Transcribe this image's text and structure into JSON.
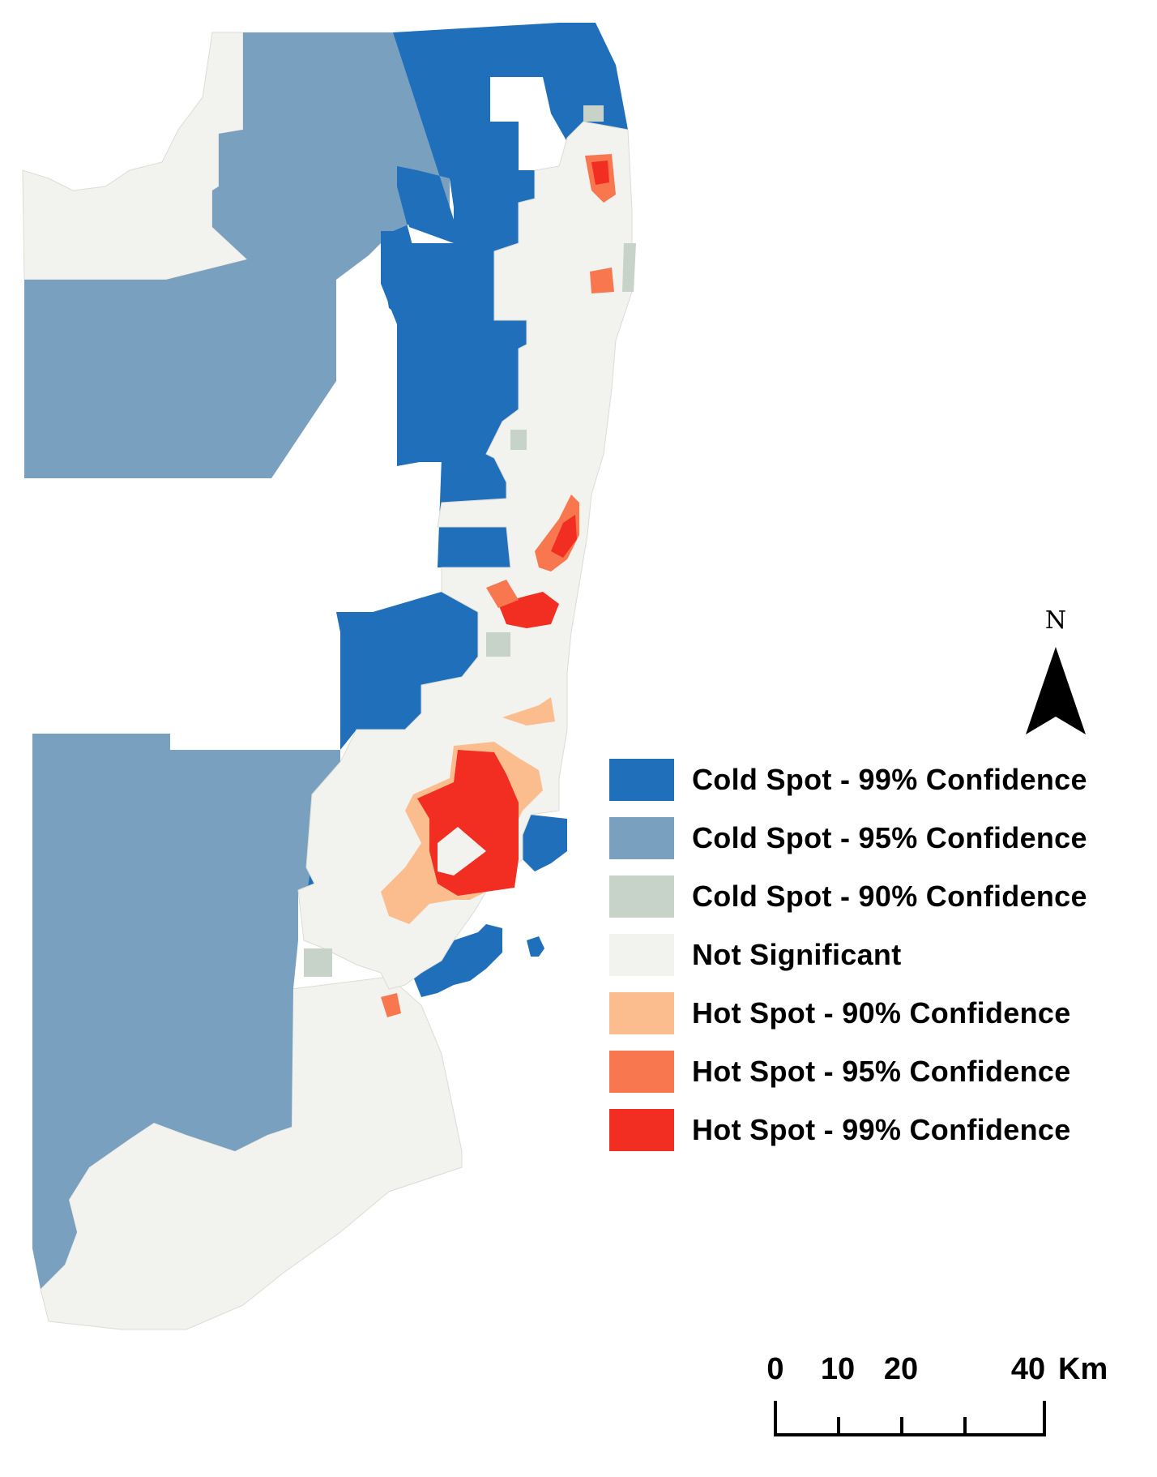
{
  "legend": {
    "items": [
      {
        "label": "Cold Spot - 99% Confidence",
        "color": "#1f6fba"
      },
      {
        "label": "Cold Spot - 95% Confidence",
        "color": "#7aa0c0"
      },
      {
        "label": "Cold Spot - 90% Confidence",
        "color": "#c7d2c8"
      },
      {
        "label": "Not Significant",
        "color": "#f2f2ef"
      },
      {
        "label": "Hot Spot - 90% Confidence",
        "color": "#fbbd8d"
      },
      {
        "label": "Hot Spot - 95% Confidence",
        "color": "#f9774f"
      },
      {
        "label": "Hot Spot - 99% Confidence",
        "color": "#f22e22"
      }
    ]
  },
  "north_arrow": {
    "label": "N",
    "icon": "north-arrow-icon"
  },
  "scale_bar": {
    "ticks": [
      "0",
      "10",
      "20",
      "40"
    ],
    "unit": "Km"
  }
}
